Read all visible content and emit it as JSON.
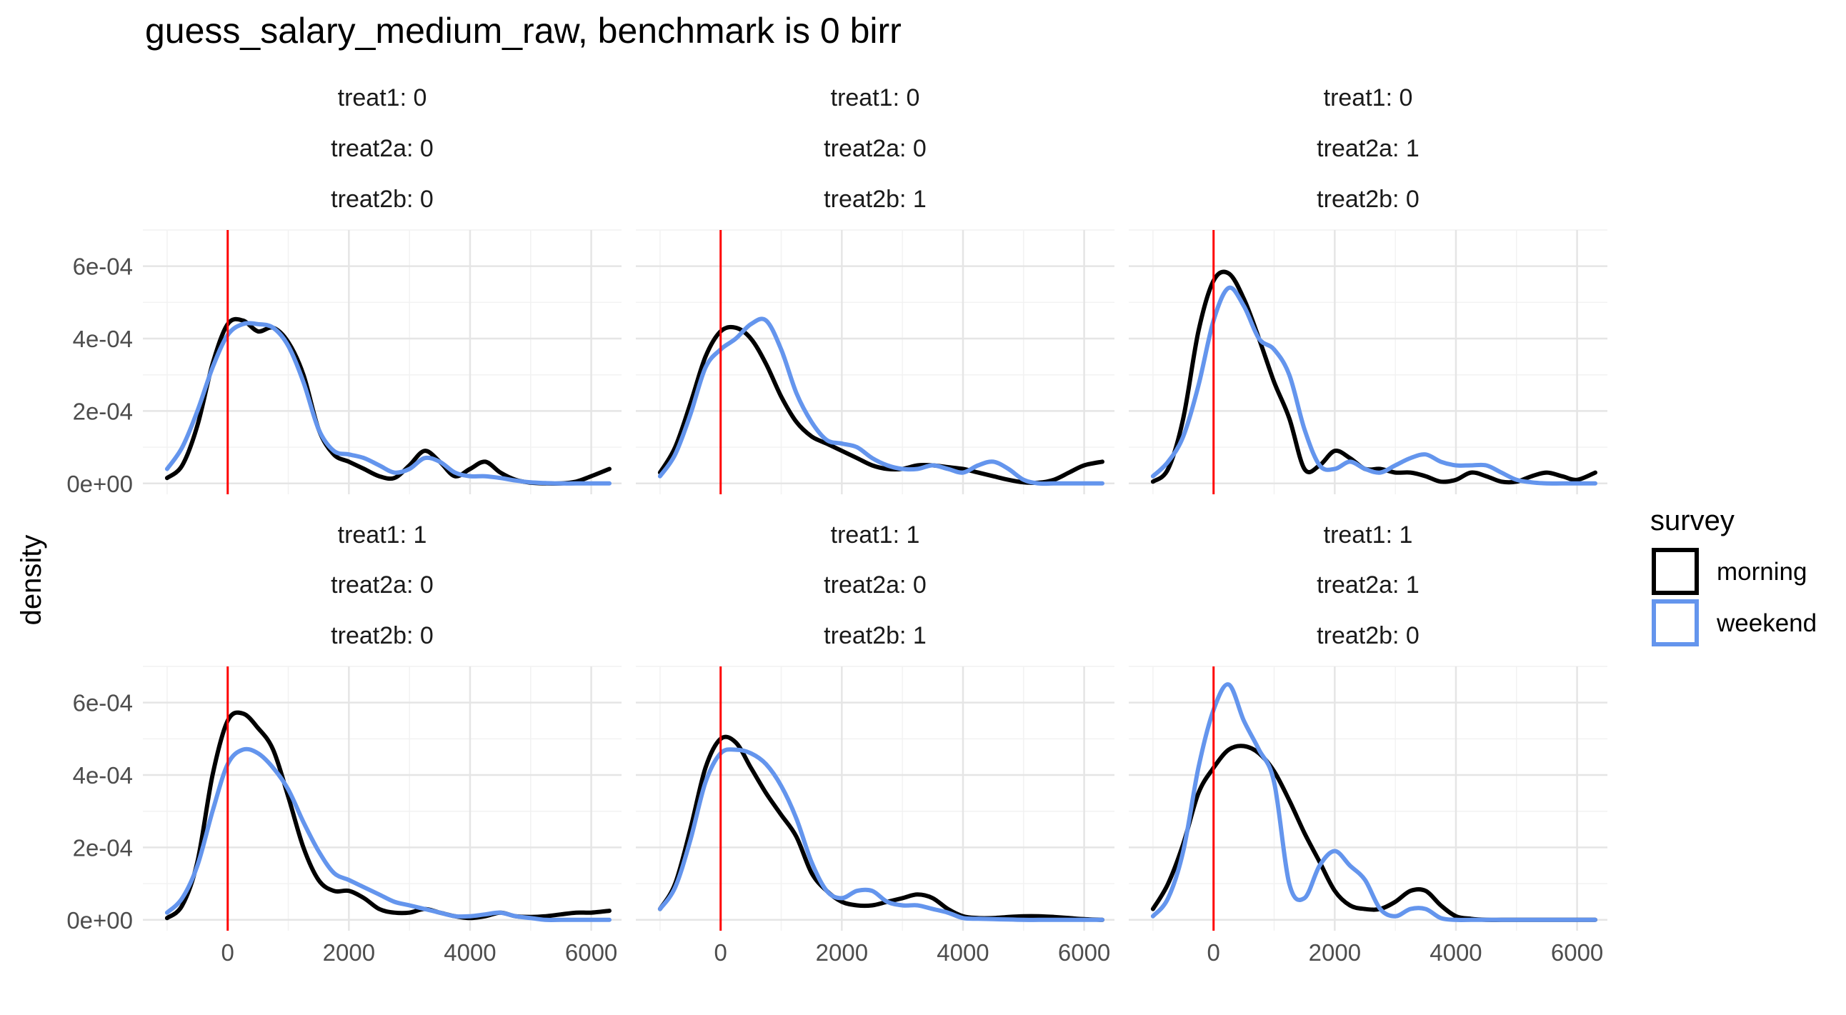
{
  "chart_data": {
    "type": "line",
    "title": "guess_salary_medium_raw, benchmark is 0 birr",
    "xlabel": "",
    "ylabel": "density",
    "xlim": [
      -1400,
      6500
    ],
    "ylim": [
      -3e-05,
      0.0007
    ],
    "x_ticks": [
      0,
      2000,
      4000,
      6000
    ],
    "x_tick_labels": [
      "0",
      "2000",
      "4000",
      "6000"
    ],
    "y_ticks": [
      0,
      0.0002,
      0.0004,
      0.0006
    ],
    "y_tick_labels": [
      "0e+00",
      "2e-04",
      "4e-04",
      "6e-04"
    ],
    "benchmark_x": 0,
    "benchmark_color": "#ff0000",
    "grid": true,
    "legend": {
      "title": "survey",
      "position": "right",
      "entries": [
        {
          "label": "morning",
          "color": "#000000"
        },
        {
          "label": "weekend",
          "color": "#6495ed"
        }
      ]
    },
    "facets": [
      {
        "strip": [
          "treat1: 0",
          "treat2a: 0",
          "treat2b: 0"
        ],
        "series": [
          {
            "name": "morning",
            "x": [
              -1000,
              -750,
              -500,
              -250,
              0,
              250,
              500,
              750,
              1000,
              1250,
              1500,
              1750,
              2000,
              2250,
              2500,
              2750,
              3000,
              3250,
              3500,
              3750,
              4000,
              4250,
              4500,
              4750,
              5000,
              5250,
              5500,
              5750,
              6000,
              6300
            ],
            "y": [
              1.5e-05,
              5e-05,
              0.00016,
              0.00033,
              0.00044,
              0.00045,
              0.00042,
              0.00043,
              0.00039,
              0.0003,
              0.00015,
              8e-05,
              6e-05,
              4e-05,
              2e-05,
              1.5e-05,
              5e-05,
              9e-05,
              6e-05,
              2e-05,
              4e-05,
              6e-05,
              3e-05,
              1e-05,
              2e-06,
              0.0,
              0.0,
              5e-06,
              2e-05,
              4e-05
            ]
          },
          {
            "name": "weekend",
            "x": [
              -1000,
              -750,
              -500,
              -250,
              0,
              250,
              500,
              750,
              1000,
              1250,
              1500,
              1750,
              2000,
              2250,
              2500,
              2750,
              3000,
              3250,
              3500,
              3750,
              4000,
              4250,
              4500,
              4750,
              5000,
              5250,
              5500,
              5750,
              6000,
              6300
            ],
            "y": [
              4e-05,
              0.0001,
              0.0002,
              0.00032,
              0.00041,
              0.00044,
              0.00044,
              0.00043,
              0.00038,
              0.00028,
              0.00015,
              9e-05,
              8e-05,
              7e-05,
              5e-05,
              3e-05,
              4e-05,
              7e-05,
              6e-05,
              3e-05,
              2e-05,
              2e-05,
              1.5e-05,
              8e-06,
              3e-06,
              1e-06,
              0.0,
              0.0,
              0.0,
              0.0
            ]
          }
        ]
      },
      {
        "strip": [
          "treat1: 0",
          "treat2a: 0",
          "treat2b: 1"
        ],
        "series": [
          {
            "name": "morning",
            "x": [
              -1000,
              -750,
              -500,
              -250,
              0,
              250,
              500,
              750,
              1000,
              1250,
              1500,
              1750,
              2000,
              2250,
              2500,
              2750,
              3000,
              3250,
              3500,
              3750,
              4000,
              4250,
              4500,
              4750,
              5000,
              5250,
              5500,
              5750,
              6000,
              6300
            ],
            "y": [
              3e-05,
              0.0001,
              0.00022,
              0.00035,
              0.00042,
              0.00043,
              0.0004,
              0.00033,
              0.00024,
              0.00017,
              0.00013,
              0.00011,
              9e-05,
              7e-05,
              5e-05,
              4e-05,
              4e-05,
              5e-05,
              5e-05,
              4.5e-05,
              4e-05,
              3e-05,
              2e-05,
              1e-05,
              3e-06,
              2e-06,
              1e-05,
              3e-05,
              5e-05,
              6e-05
            ]
          },
          {
            "name": "weekend",
            "x": [
              -1000,
              -750,
              -500,
              -250,
              0,
              250,
              500,
              750,
              1000,
              1250,
              1500,
              1750,
              2000,
              2250,
              2500,
              2750,
              3000,
              3250,
              3500,
              3750,
              4000,
              4250,
              4500,
              4750,
              5000,
              5250,
              5500,
              5750,
              6000,
              6300
            ],
            "y": [
              2e-05,
              8e-05,
              0.00019,
              0.00032,
              0.00037,
              0.0004,
              0.00044,
              0.00045,
              0.00037,
              0.00025,
              0.00017,
              0.00012,
              0.00011,
              0.0001,
              7e-05,
              5e-05,
              4e-05,
              4e-05,
              5e-05,
              4e-05,
              3e-05,
              5e-05,
              6e-05,
              4e-05,
              1e-05,
              0.0,
              0.0,
              0.0,
              0.0,
              0.0
            ]
          }
        ]
      },
      {
        "strip": [
          "treat1: 0",
          "treat2a: 1",
          "treat2b: 0"
        ],
        "series": [
          {
            "name": "morning",
            "x": [
              -1000,
              -750,
              -500,
              -250,
              0,
              250,
              500,
              750,
              1000,
              1250,
              1500,
              1750,
              2000,
              2250,
              2500,
              2750,
              3000,
              3250,
              3500,
              3750,
              4000,
              4250,
              4500,
              4750,
              5000,
              5250,
              5500,
              5750,
              6000,
              6300
            ],
            "y": [
              5e-06,
              4e-05,
              0.00018,
              0.00042,
              0.00056,
              0.00058,
              0.00051,
              0.0004,
              0.00028,
              0.00018,
              4e-05,
              5e-05,
              9e-05,
              7e-05,
              4e-05,
              4e-05,
              3e-05,
              3e-05,
              2e-05,
              5e-06,
              1e-05,
              3e-05,
              2e-05,
              5e-06,
              5e-06,
              2e-05,
              3e-05,
              2e-05,
              1e-05,
              3e-05
            ]
          },
          {
            "name": "weekend",
            "x": [
              -1000,
              -750,
              -500,
              -250,
              0,
              250,
              500,
              750,
              1000,
              1250,
              1500,
              1750,
              2000,
              2250,
              2500,
              2750,
              3000,
              3250,
              3500,
              3750,
              4000,
              4250,
              4500,
              4750,
              5000,
              5250,
              5500,
              5750,
              6000,
              6300
            ],
            "y": [
              2e-05,
              6e-05,
              0.00013,
              0.00027,
              0.00045,
              0.00054,
              0.00049,
              0.0004,
              0.00037,
              0.0003,
              0.00015,
              5e-05,
              4e-05,
              6e-05,
              4e-05,
              3e-05,
              5e-05,
              7e-05,
              8e-05,
              6e-05,
              5e-05,
              5e-05,
              5e-05,
              3e-05,
              1e-05,
              3e-06,
              0.0,
              0.0,
              0.0,
              0.0
            ]
          }
        ]
      },
      {
        "strip": [
          "treat1: 1",
          "treat2a: 0",
          "treat2b: 0"
        ],
        "series": [
          {
            "name": "morning",
            "x": [
              -1000,
              -750,
              -500,
              -250,
              0,
              250,
              500,
              750,
              1000,
              1250,
              1500,
              1750,
              2000,
              2250,
              2500,
              2750,
              3000,
              3250,
              3500,
              3750,
              4000,
              4250,
              4500,
              4750,
              5000,
              5250,
              5500,
              5750,
              6000,
              6300
            ],
            "y": [
              5e-06,
              4e-05,
              0.00016,
              0.0004,
              0.00055,
              0.00057,
              0.00053,
              0.00047,
              0.00034,
              0.0002,
              0.00011,
              8e-05,
              8e-05,
              6e-05,
              3e-05,
              2e-05,
              2e-05,
              3e-05,
              2e-05,
              1e-05,
              5e-06,
              1e-05,
              2e-05,
              1e-05,
              8e-06,
              1e-05,
              1.5e-05,
              2e-05,
              2e-05,
              2.5e-05
            ]
          },
          {
            "name": "weekend",
            "x": [
              -1000,
              -750,
              -500,
              -250,
              0,
              250,
              500,
              750,
              1000,
              1250,
              1500,
              1750,
              2000,
              2250,
              2500,
              2750,
              3000,
              3250,
              3500,
              3750,
              4000,
              4250,
              4500,
              4750,
              5000,
              5250,
              5500,
              5750,
              6000,
              6300
            ],
            "y": [
              2e-05,
              6e-05,
              0.00015,
              0.0003,
              0.00043,
              0.00047,
              0.00046,
              0.00042,
              0.00036,
              0.00027,
              0.00019,
              0.00013,
              0.00011,
              9e-05,
              7e-05,
              5e-05,
              4e-05,
              3e-05,
              2e-05,
              1e-05,
              1e-05,
              1.5e-05,
              2e-05,
              1e-05,
              5e-06,
              0.0,
              0.0,
              0.0,
              0.0,
              0.0
            ]
          }
        ]
      },
      {
        "strip": [
          "treat1: 1",
          "treat2a: 0",
          "treat2b: 1"
        ],
        "series": [
          {
            "name": "morning",
            "x": [
              -1000,
              -750,
              -500,
              -250,
              0,
              250,
              500,
              750,
              1000,
              1250,
              1500,
              1750,
              2000,
              2250,
              2500,
              2750,
              3000,
              3250,
              3500,
              3750,
              4000,
              4250,
              4500,
              4750,
              5000,
              5250,
              5500,
              5750,
              6000,
              6300
            ],
            "y": [
              3e-05,
              0.0001,
              0.00025,
              0.00042,
              0.0005,
              0.00049,
              0.00042,
              0.00035,
              0.00029,
              0.00023,
              0.00013,
              8e-05,
              5e-05,
              4e-05,
              4e-05,
              5e-05,
              6e-05,
              7e-05,
              6e-05,
              3e-05,
              1e-05,
              5e-06,
              5e-06,
              8e-06,
              1e-05,
              1e-05,
              8e-06,
              5e-06,
              2e-06,
              0.0
            ]
          },
          {
            "name": "weekend",
            "x": [
              -1000,
              -750,
              -500,
              -250,
              0,
              250,
              500,
              750,
              1000,
              1250,
              1500,
              1750,
              2000,
              2250,
              2500,
              2750,
              3000,
              3250,
              3500,
              3750,
              4000,
              4250,
              4500,
              4750,
              5000,
              5250,
              5500,
              5750,
              6000,
              6300
            ],
            "y": [
              3e-05,
              9e-05,
              0.00022,
              0.00038,
              0.00046,
              0.00047,
              0.00046,
              0.00043,
              0.00037,
              0.00028,
              0.00016,
              8e-05,
              6e-05,
              8e-05,
              8e-05,
              5e-05,
              4e-05,
              4e-05,
              3e-05,
              2e-05,
              5e-06,
              3e-06,
              2e-06,
              1e-06,
              0.0,
              0.0,
              0.0,
              0.0,
              0.0,
              0.0
            ]
          }
        ]
      },
      {
        "strip": [
          "treat1: 1",
          "treat2a: 1",
          "treat2b: 0"
        ],
        "series": [
          {
            "name": "morning",
            "x": [
              -1000,
              -750,
              -500,
              -250,
              0,
              250,
              500,
              750,
              1000,
              1250,
              1500,
              1750,
              2000,
              2250,
              2500,
              2750,
              3000,
              3250,
              3500,
              3750,
              4000,
              4250,
              4500,
              4750,
              5000,
              5250,
              5500,
              5750,
              6000,
              6300
            ],
            "y": [
              3e-05,
              0.0001,
              0.00021,
              0.00035,
              0.00042,
              0.00047,
              0.00048,
              0.00046,
              0.00041,
              0.00033,
              0.00024,
              0.00016,
              8e-05,
              4e-05,
              3e-05,
              3e-05,
              5e-05,
              8e-05,
              8e-05,
              4e-05,
              1e-05,
              3e-06,
              0.0,
              0.0,
              0.0,
              0.0,
              0.0,
              0.0,
              0.0,
              0.0
            ]
          },
          {
            "name": "weekend",
            "x": [
              -1000,
              -750,
              -500,
              -250,
              0,
              250,
              500,
              750,
              1000,
              1250,
              1500,
              1750,
              2000,
              2250,
              2500,
              2750,
              3000,
              3250,
              3500,
              3750,
              4000,
              4250,
              4500,
              4750,
              5000,
              5250,
              5500,
              5750,
              6000,
              6300
            ],
            "y": [
              1e-05,
              6e-05,
              0.00019,
              0.00042,
              0.00058,
              0.00065,
              0.00055,
              0.00047,
              0.00038,
              0.0001,
              6e-05,
              0.00015,
              0.00019,
              0.00015,
              0.00011,
              3e-05,
              1e-05,
              3e-05,
              3e-05,
              5e-06,
              0.0,
              0.0,
              0.0,
              0.0,
              0.0,
              0.0,
              0.0,
              0.0,
              0.0,
              0.0
            ]
          }
        ]
      }
    ]
  }
}
